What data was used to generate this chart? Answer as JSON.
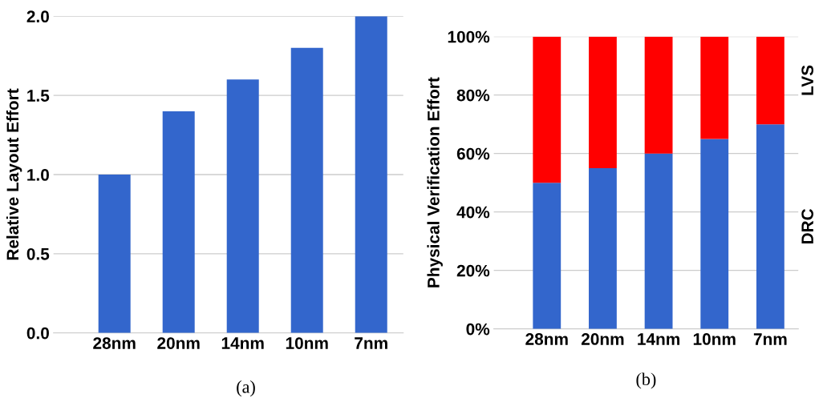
{
  "chart_data": [
    {
      "type": "bar",
      "ylabel": "Relative Layout Effort",
      "categories": [
        "28nm",
        "20nm",
        "14nm",
        "10nm",
        "7nm"
      ],
      "values": [
        1.0,
        1.4,
        1.6,
        1.8,
        2.0
      ],
      "color": "#3366cc",
      "ylim": [
        0,
        2.0
      ],
      "yticks": [
        {
          "value": 0,
          "label": "0.0"
        },
        {
          "value": 0.5,
          "label": "0.5"
        },
        {
          "value": 1.0,
          "label": "1.0"
        },
        {
          "value": 1.5,
          "label": "1.5"
        },
        {
          "value": 2.0,
          "label": "2.0"
        }
      ],
      "grid": "y",
      "annotations": [
        "(a)"
      ]
    },
    {
      "type": "bar",
      "stacked": true,
      "ylabel": "Physical Verification Effort",
      "categories": [
        "28nm",
        "20nm",
        "14nm",
        "10nm",
        "7nm"
      ],
      "series": [
        {
          "name": "DRC",
          "color": "#3366cc",
          "values": [
            50,
            55,
            60,
            65,
            70
          ]
        },
        {
          "name": "LVS",
          "color": "#ff0000",
          "values": [
            50,
            45,
            40,
            35,
            30
          ]
        }
      ],
      "ylim": [
        0,
        100
      ],
      "yticks": [
        {
          "value": 0,
          "label": "0%"
        },
        {
          "value": 20,
          "label": "20%"
        },
        {
          "value": 40,
          "label": "40%"
        },
        {
          "value": 60,
          "label": "60%"
        },
        {
          "value": 80,
          "label": "80%"
        },
        {
          "value": 100,
          "label": "100%"
        }
      ],
      "grid": "y",
      "annotations": [
        "(b)"
      ]
    }
  ]
}
